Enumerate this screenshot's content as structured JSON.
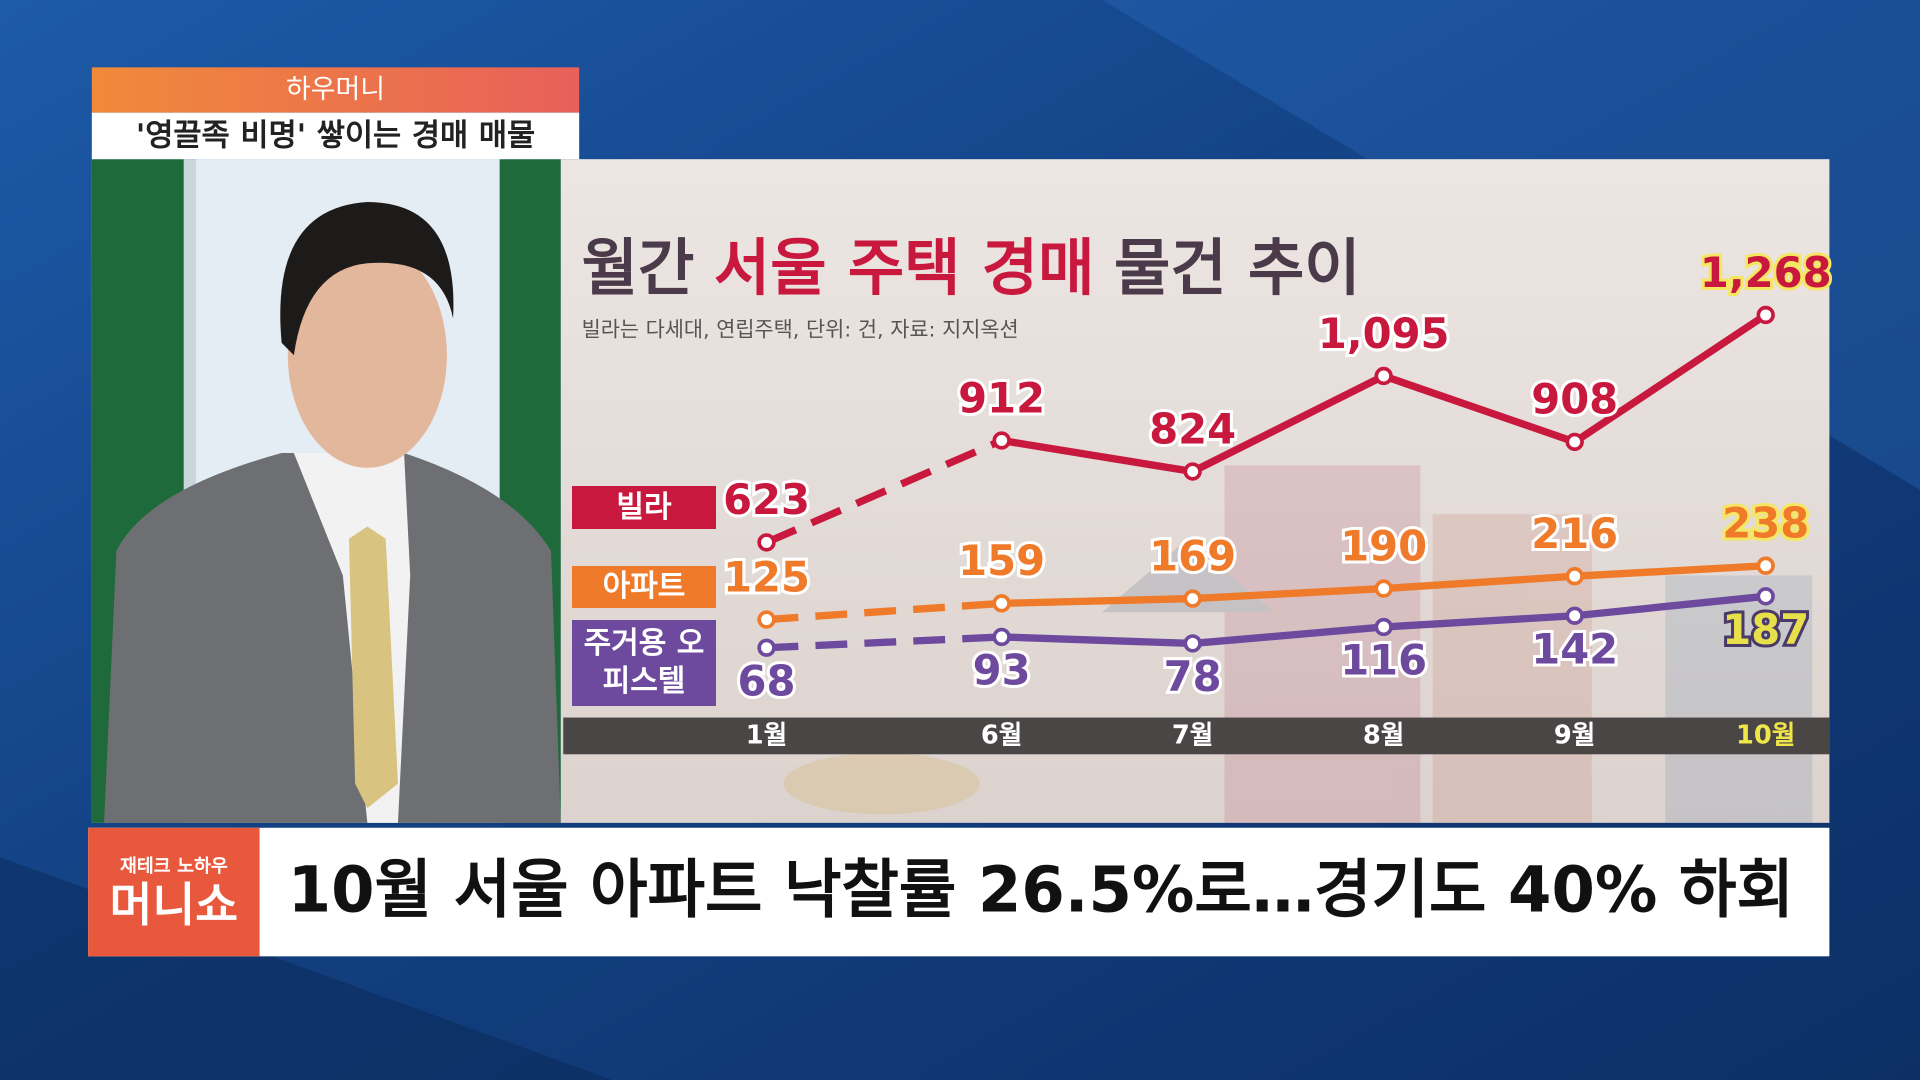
{
  "program": {
    "title": "하우머니",
    "topic": "'영끌족 비명' 쌓이는 경매 매물"
  },
  "chart_data": {
    "type": "line",
    "title": [
      "월간",
      "서울 주택 경매",
      "물건 추이"
    ],
    "subtitle": "빌라는 다세대, 연립주택, 단위: 건, 자료: 지지옥션",
    "categories": [
      "1월",
      "6월",
      "7월",
      "8월",
      "9월",
      "10월"
    ],
    "series": [
      {
        "name": "빌라",
        "color": "#c8183e",
        "values": [
          623,
          912,
          824,
          1095,
          908,
          1268
        ],
        "value_labels": [
          "623",
          "912",
          "824",
          "1,095",
          "908",
          "1,268"
        ]
      },
      {
        "name": "아파트",
        "color": "#ee7a2a",
        "values": [
          125,
          159,
          169,
          190,
          216,
          238
        ]
      },
      {
        "name": "주거용 오피스텔",
        "color": "#6e4a9e",
        "values": [
          68,
          93,
          78,
          116,
          142,
          187
        ]
      }
    ]
  },
  "ticker": {
    "logo_top": "재테크 노하우",
    "logo": "머니쇼",
    "headline": "10월 서울 아파트 낙찰률 26.5%로…경기도 40% 하회"
  }
}
